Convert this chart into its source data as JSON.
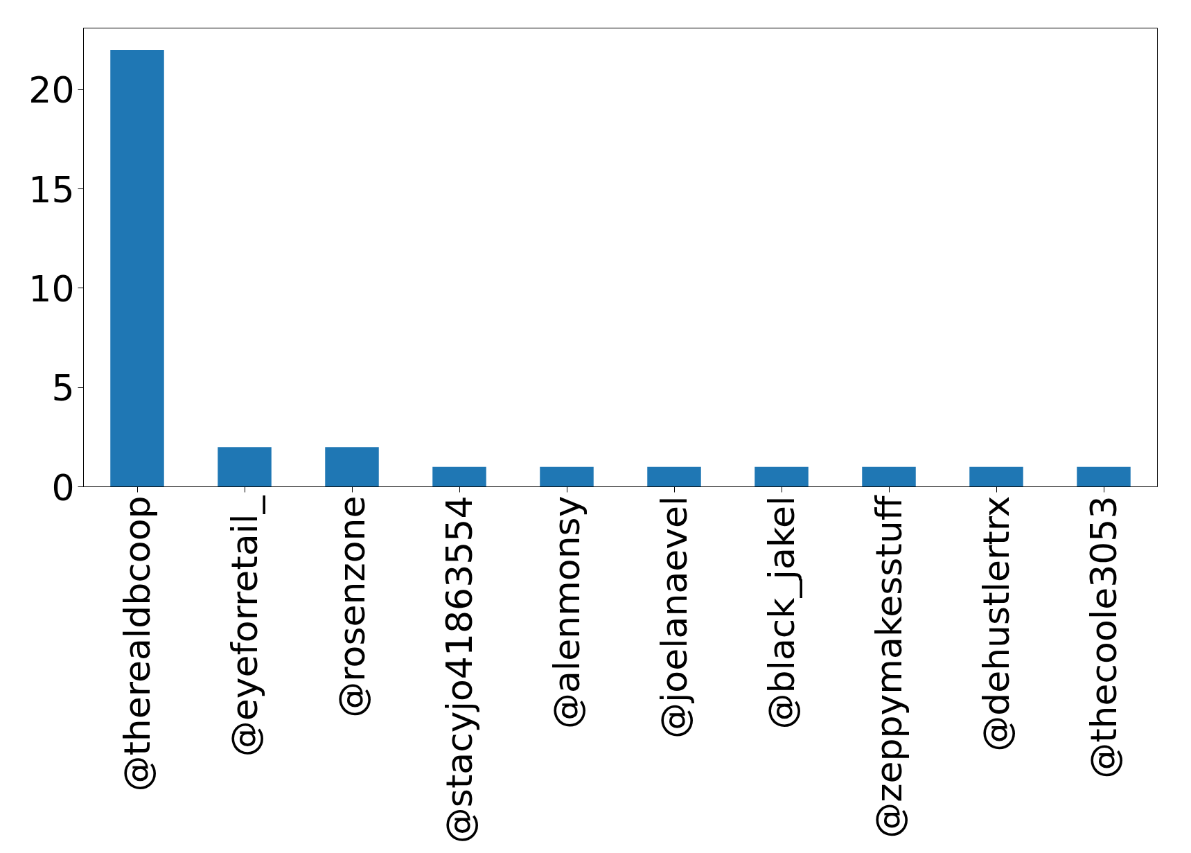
{
  "chart_data": {
    "type": "bar",
    "categories": [
      "@therealdbcoop",
      "@eyeforretail_",
      "@rosenzone",
      "@stacyjo41863554",
      "@alenmonsy",
      "@joelanaevel",
      "@black_jakel",
      "@zeppymakesstuff",
      "@dehustlertrx",
      "@thecoole3053"
    ],
    "values": [
      22,
      2,
      2,
      1,
      1,
      1,
      1,
      1,
      1,
      1
    ],
    "color": "#1f77b4",
    "ylim": [
      0,
      23.1
    ],
    "yticks": [
      0,
      5,
      10,
      15,
      20
    ],
    "grid": false
  }
}
